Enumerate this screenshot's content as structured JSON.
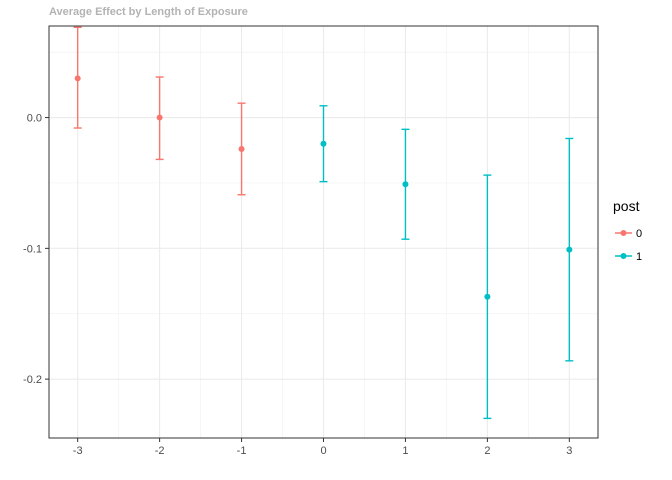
{
  "chart_data": {
    "type": "scatter",
    "title": "Average Effect by Length of Exposure",
    "xlabel": "",
    "ylabel": "",
    "x_ticks": [
      "-3",
      "-2",
      "-1",
      "0",
      "1",
      "2",
      "3"
    ],
    "y_ticks": [
      "0.0",
      "-0.1",
      "-0.2"
    ],
    "xlim": [
      -3.35,
      3.35
    ],
    "ylim": [
      -0.245,
      0.07
    ],
    "grid": true,
    "legend": {
      "title": "post",
      "placement": "right"
    },
    "series": [
      {
        "name": "0",
        "color": "#F8766D",
        "points": [
          {
            "x": -3,
            "y": 0.03,
            "lo": -0.008,
            "hi": 0.069
          },
          {
            "x": -2,
            "y": 0.0,
            "lo": -0.032,
            "hi": 0.031
          },
          {
            "x": -1,
            "y": -0.024,
            "lo": -0.059,
            "hi": 0.011
          }
        ]
      },
      {
        "name": "1",
        "color": "#00BFC4",
        "points": [
          {
            "x": 0,
            "y": -0.02,
            "lo": -0.049,
            "hi": 0.009
          },
          {
            "x": 1,
            "y": -0.051,
            "lo": -0.093,
            "hi": -0.009
          },
          {
            "x": 2,
            "y": -0.137,
            "lo": -0.23,
            "hi": -0.044
          },
          {
            "x": 3,
            "y": -0.101,
            "lo": -0.186,
            "hi": -0.016
          }
        ]
      }
    ]
  }
}
